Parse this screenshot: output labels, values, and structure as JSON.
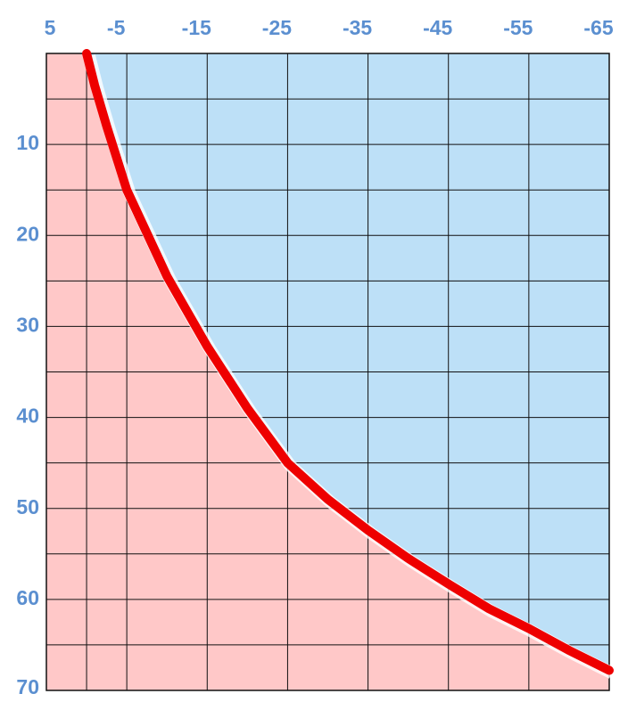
{
  "chart_data": {
    "type": "area-line",
    "x": [
      0,
      -1,
      -2.5,
      -5,
      -10,
      -15,
      -20,
      -25,
      -30,
      -35,
      -40,
      -45,
      -50,
      -55,
      -60,
      -65
    ],
    "series": [
      {
        "color": "#ee0000",
        "values": [
          0,
          3.5,
          8,
          15,
          24.5,
          32.2,
          39,
          45,
          49,
          52.4,
          55.5,
          58.3,
          61,
          63.2,
          65.6,
          67.8
        ]
      }
    ],
    "below_color": "#ffc8c8",
    "above_color": "#bde0f7",
    "xlim": [
      5,
      -65
    ],
    "xticks": [
      5,
      -5,
      -15,
      -25,
      -35,
      -45,
      -55,
      -65
    ],
    "xminorticks": [
      0
    ],
    "ylim": [
      0,
      70
    ],
    "yticks": [
      10,
      20,
      30,
      40,
      50,
      60,
      70
    ],
    "yminorticks": [
      5,
      15,
      25,
      35,
      45,
      55,
      65
    ],
    "grid": true
  }
}
